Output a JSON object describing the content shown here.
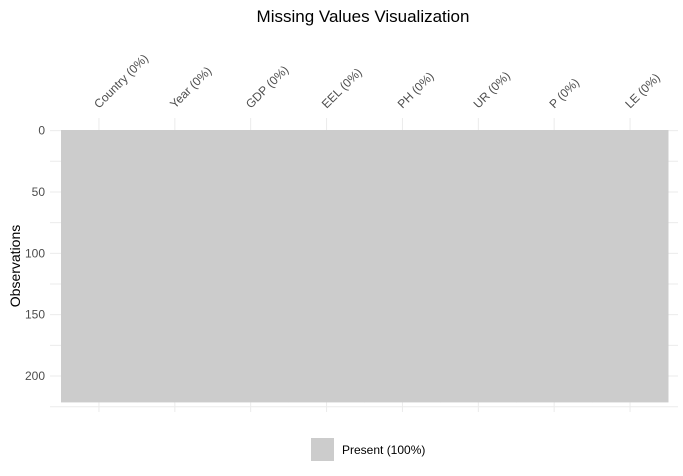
{
  "chart_data": {
    "type": "heatmap",
    "title": "Missing Values Visualization",
    "ylabel": "Observations",
    "columns": [
      {
        "label": "Country (0%)",
        "missing_pct": 0
      },
      {
        "label": "Year (0%)",
        "missing_pct": 0
      },
      {
        "label": "GDP (0%)",
        "missing_pct": 0
      },
      {
        "label": "EEL (0%)",
        "missing_pct": 0
      },
      {
        "label": "PH (0%)",
        "missing_pct": 0
      },
      {
        "label": "UR (0%)",
        "missing_pct": 0
      },
      {
        "label": "P (0%)",
        "missing_pct": 0
      },
      {
        "label": "LE (0%)",
        "missing_pct": 0
      }
    ],
    "n_observations": 222,
    "yticks": [
      0,
      50,
      100,
      150,
      200
    ],
    "ylim": [
      0,
      222
    ],
    "y_reversed": true,
    "grid": true,
    "legend": {
      "position": "bottom",
      "entries": [
        {
          "label": "Present (100%)",
          "color": "#cccccc"
        }
      ]
    },
    "colors": {
      "present": "#cccccc",
      "grid": "#ebebeb"
    }
  }
}
